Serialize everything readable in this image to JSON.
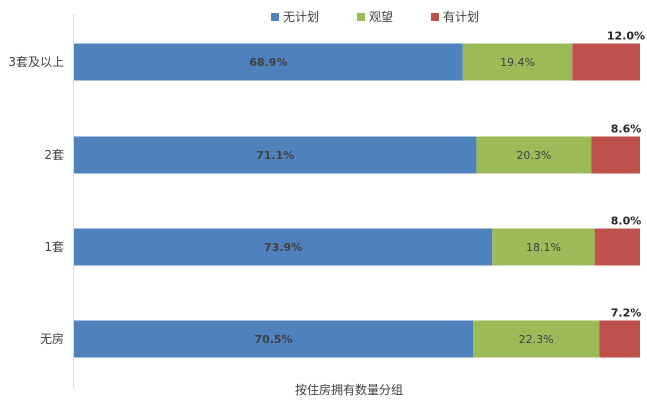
{
  "chart_data": {
    "type": "bar",
    "orientation": "horizontal",
    "stacked": "percent",
    "xlabel": "按住房拥有数量分组",
    "categories": [
      "3套及以上",
      "2套",
      "1套",
      "无房"
    ],
    "series": [
      {
        "name": "无计划",
        "color": "#4F81BD",
        "values": [
          68.9,
          71.1,
          73.9,
          70.5
        ],
        "labels": [
          "68.9%",
          "71.1%",
          "73.9%",
          "70.5%"
        ]
      },
      {
        "name": "观望",
        "color": "#9BBB59",
        "values": [
          19.4,
          20.3,
          18.1,
          22.3
        ],
        "labels": [
          "19.4%",
          "20.3%",
          "18.1%",
          "22.3%"
        ]
      },
      {
        "name": "有计划",
        "color": "#C0504D",
        "values": [
          12.0,
          8.6,
          8.0,
          7.2
        ],
        "labels": [
          "12.0%",
          "8.6%",
          "8.0%",
          "7.2%"
        ]
      }
    ],
    "legend": "top-center",
    "grid": false
  }
}
